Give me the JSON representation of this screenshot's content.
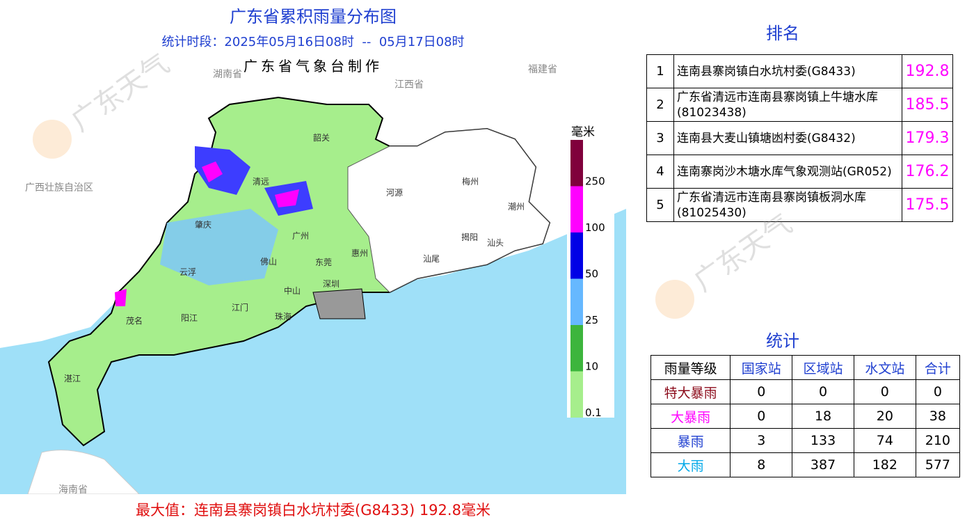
{
  "header": {
    "title": "广东省累积雨量分布图",
    "period": "统计时段：2025年05月16日08时  --  05月17日08时",
    "maker": "广东省气象台制作"
  },
  "map": {
    "cities": [
      "韶关",
      "清远",
      "河源",
      "梅州",
      "潮州",
      "肇庆",
      "广州",
      "揭阳",
      "汕头",
      "惠州",
      "云浮",
      "佛山",
      "东莞",
      "汕尾",
      "深圳",
      "中山",
      "江门",
      "珠海",
      "阳江",
      "茂名",
      "湛江"
    ],
    "neighbors": [
      "广西壮族自治区",
      "江西省",
      "海南省",
      "湖南省",
      "福建省"
    ],
    "watermark": "广东天气"
  },
  "legend": {
    "unit": "毫米",
    "ticks": [
      0.1,
      10,
      25,
      50,
      100,
      250
    ],
    "colors": [
      "#a6ee8c",
      "#3db53d",
      "#66b8ff",
      "#0000e6",
      "#ff00ff",
      "#80003c"
    ]
  },
  "ranking": {
    "title": "排名",
    "rows": [
      [
        "1",
        "连南县寨岗镇白水坑村委(G8433)",
        "192.8"
      ],
      [
        "2",
        "广东省清远市连南县寨岗镇上牛塘水库(81023438)",
        "185.5"
      ],
      [
        "3",
        "连南县大麦山镇塘凼村委(G8432)",
        "179.3"
      ],
      [
        "4",
        "连南寨岗沙木塘水库气象观测站(GR052)",
        "176.2"
      ],
      [
        "5",
        "广东省清远市连南县寨岗镇板洞水库(81025430)",
        "175.5"
      ]
    ]
  },
  "stats": {
    "title": "统计",
    "header": [
      "雨量等级",
      "国家站",
      "区域站",
      "水文站",
      "合计"
    ],
    "label_colors": [
      "#8b0a1a",
      "#ff00ff",
      "#1f3fd0",
      "#00a8e8"
    ],
    "rows": [
      [
        "特大暴雨",
        "0",
        "0",
        "0",
        "0"
      ],
      [
        "大暴雨",
        "0",
        "18",
        "20",
        "38"
      ],
      [
        "暴雨",
        "3",
        "133",
        "74",
        "210"
      ],
      [
        "大雨",
        "8",
        "387",
        "182",
        "577"
      ]
    ]
  },
  "footer": "最大值：连南县寨岗镇白水坑村委(G8433) 192.8毫米"
}
